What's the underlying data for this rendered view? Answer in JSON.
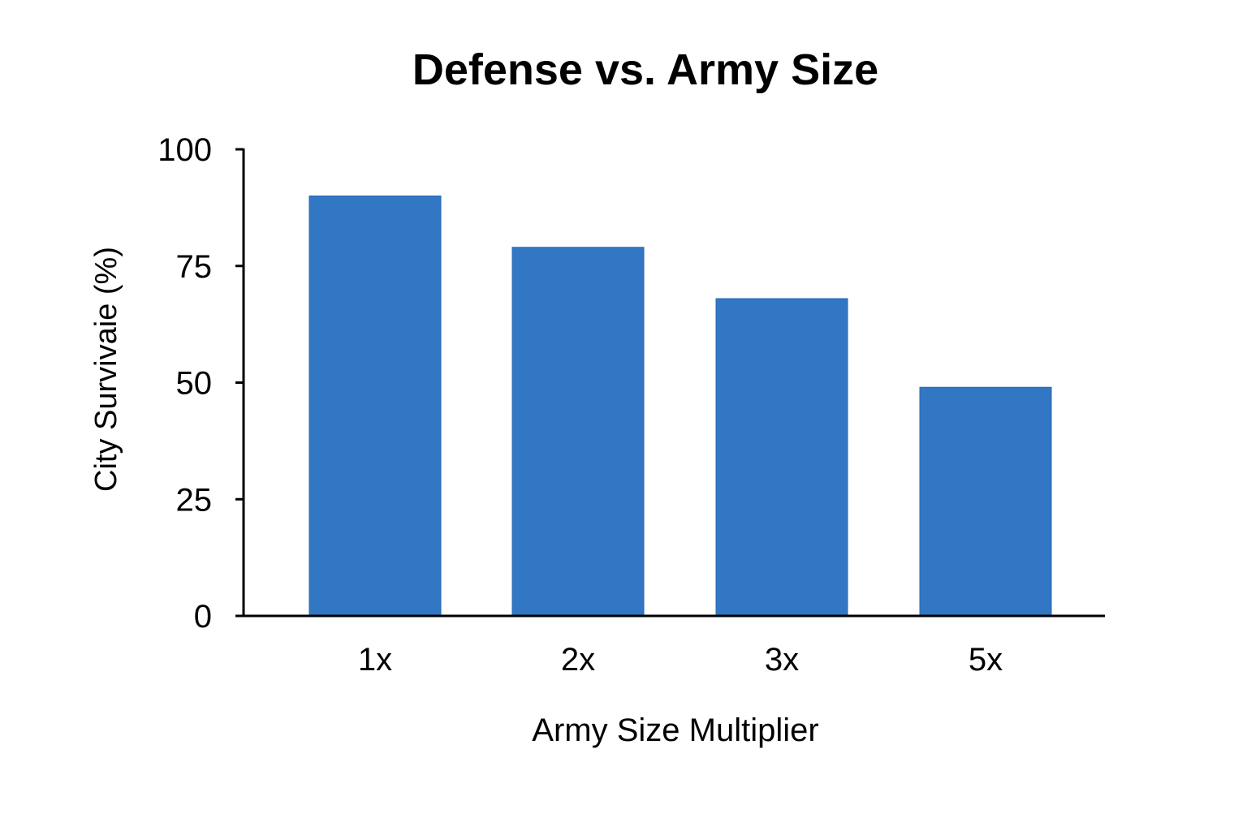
{
  "chart_data": {
    "type": "bar",
    "title": "Defense vs. Army Size",
    "xlabel": "Army Size Multiplier",
    "ylabel": "City Survivaie (%)",
    "categories": [
      "1x",
      "2x",
      "3x",
      "5x"
    ],
    "values": [
      90,
      79,
      68,
      49
    ],
    "ylim": [
      0,
      100
    ],
    "yticks": [
      "0",
      "25",
      "50",
      "75",
      "100"
    ],
    "grid": false,
    "bar_color": "#3277c4"
  }
}
